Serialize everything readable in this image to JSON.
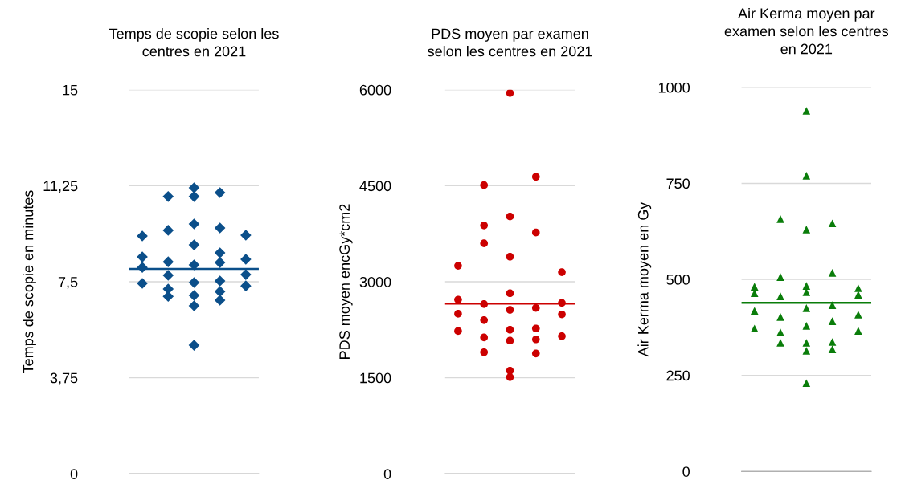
{
  "chart_data": [
    {
      "type": "scatter",
      "title": "Temps de scopie selon les\ncentres en 2021",
      "ylabel": "Temps de scopie en minutes",
      "marker": "diamond",
      "grid": "y",
      "tick_labels": "y",
      "categories": [
        null,
        null,
        null,
        null,
        null
      ],
      "ylim": [
        0,
        15
      ],
      "yticks": [
        0,
        {
          "value": 3.75,
          "label": "3,75"
        },
        {
          "value": 7.5,
          "label": "7,5"
        },
        {
          "value": 11.25,
          "label": "11,25"
        },
        15
      ],
      "series": [
        {
          "color": "#0b4f8a",
          "values": [
            9.29,
            10.83,
            11.17,
            10.98,
            9.32
          ]
        },
        {
          "color": "#0b4f8a",
          "values": [
            8.47,
            9.51,
            10.83,
            9.6,
            8.38
          ]
        },
        {
          "color": "#0b4f8a",
          "values": [
            8.06,
            8.28,
            9.76,
            8.63,
            7.78
          ]
        },
        {
          "color": "#0b4f8a",
          "values": [
            7.44,
            7.75,
            8.94,
            8.25,
            7.34
          ]
        },
        {
          "color": "#0b4f8a",
          "values": [
            null,
            7.22,
            8.16,
            7.53,
            null
          ]
        },
        {
          "color": "#0b4f8a",
          "values": [
            null,
            6.93,
            7.47,
            7.12,
            null
          ]
        },
        {
          "color": "#0b4f8a",
          "values": [
            null,
            null,
            6.97,
            6.78,
            null
          ]
        },
        {
          "color": "#0b4f8a",
          "values": [
            null,
            null,
            6.56,
            null,
            null
          ]
        },
        {
          "color": "#0b4f8a",
          "values": [
            null,
            null,
            5.02,
            null,
            null
          ]
        }
      ],
      "ref_lines": [
        {
          "axis": "y",
          "value": 8.0,
          "color": "#0b4f8a"
        }
      ]
    },
    {
      "type": "scatter",
      "title": "PDS moyen par examen\nselon les centres en 2021",
      "ylabel": "PDS moyen encGy*cm2",
      "marker": "circle",
      "grid": "y",
      "tick_labels": "y",
      "categories": [
        null,
        null,
        null,
        null,
        null
      ],
      "ylim": [
        0,
        6000
      ],
      "yticks": [
        0,
        1500,
        3000,
        4500,
        6000
      ],
      "series": [
        {
          "color": "#cc0000",
          "values": [
            3250,
            4510,
            5950,
            4640,
            3150
          ]
        },
        {
          "color": "#cc0000",
          "values": [
            2720,
            3880,
            4020,
            3770,
            2670
          ]
        },
        {
          "color": "#cc0000",
          "values": [
            2500,
            3600,
            3390,
            2590,
            2490
          ]
        },
        {
          "color": "#cc0000",
          "values": [
            2230,
            2650,
            2820,
            2270,
            2150
          ]
        },
        {
          "color": "#cc0000",
          "values": [
            null,
            2400,
            2560,
            2100,
            null
          ]
        },
        {
          "color": "#cc0000",
          "values": [
            null,
            2130,
            2250,
            1880,
            null
          ]
        },
        {
          "color": "#cc0000",
          "values": [
            null,
            1900,
            2080,
            null,
            null
          ]
        },
        {
          "color": "#cc0000",
          "values": [
            null,
            null,
            1610,
            null,
            null
          ]
        },
        {
          "color": "#cc0000",
          "values": [
            null,
            null,
            1510,
            null,
            null
          ]
        }
      ],
      "ref_lines": [
        {
          "axis": "y",
          "value": 2660,
          "color": "#cc0000"
        }
      ]
    },
    {
      "type": "scatter",
      "title": "Air Kerma moyen par\nexamen selon les centres\nen 2021",
      "ylabel": "Air Kerma moyen en Gy",
      "marker": "triangle",
      "grid": "y",
      "tick_labels": "y",
      "categories": [
        null,
        null,
        null,
        null,
        null
      ],
      "ylim": [
        0,
        1000
      ],
      "yticks": [
        0,
        250,
        500,
        750,
        1000
      ],
      "series": [
        {
          "color": "#0a7d0a",
          "values": [
            481,
            657,
            939,
            646,
            477
          ]
        },
        {
          "color": "#0a7d0a",
          "values": [
            464,
            506,
            770,
            517,
            460
          ]
        },
        {
          "color": "#0a7d0a",
          "values": [
            418,
            456,
            630,
            433,
            408
          ]
        },
        {
          "color": "#0a7d0a",
          "values": [
            372,
            402,
            483,
            391,
            366
          ]
        },
        {
          "color": "#0a7d0a",
          "values": [
            null,
            362,
            467,
            337,
            null
          ]
        },
        {
          "color": "#0a7d0a",
          "values": [
            null,
            335,
            425,
            318,
            null
          ]
        },
        {
          "color": "#0a7d0a",
          "values": [
            null,
            null,
            379,
            null,
            null
          ]
        },
        {
          "color": "#0a7d0a",
          "values": [
            null,
            null,
            335,
            null,
            null
          ]
        },
        {
          "color": "#0a7d0a",
          "values": [
            null,
            null,
            314,
            null,
            null
          ]
        },
        {
          "color": "#0a7d0a",
          "values": [
            null,
            null,
            230,
            null,
            null
          ]
        }
      ],
      "ref_lines": [
        {
          "axis": "y",
          "value": 439,
          "color": "#0a7d0a"
        }
      ]
    }
  ]
}
